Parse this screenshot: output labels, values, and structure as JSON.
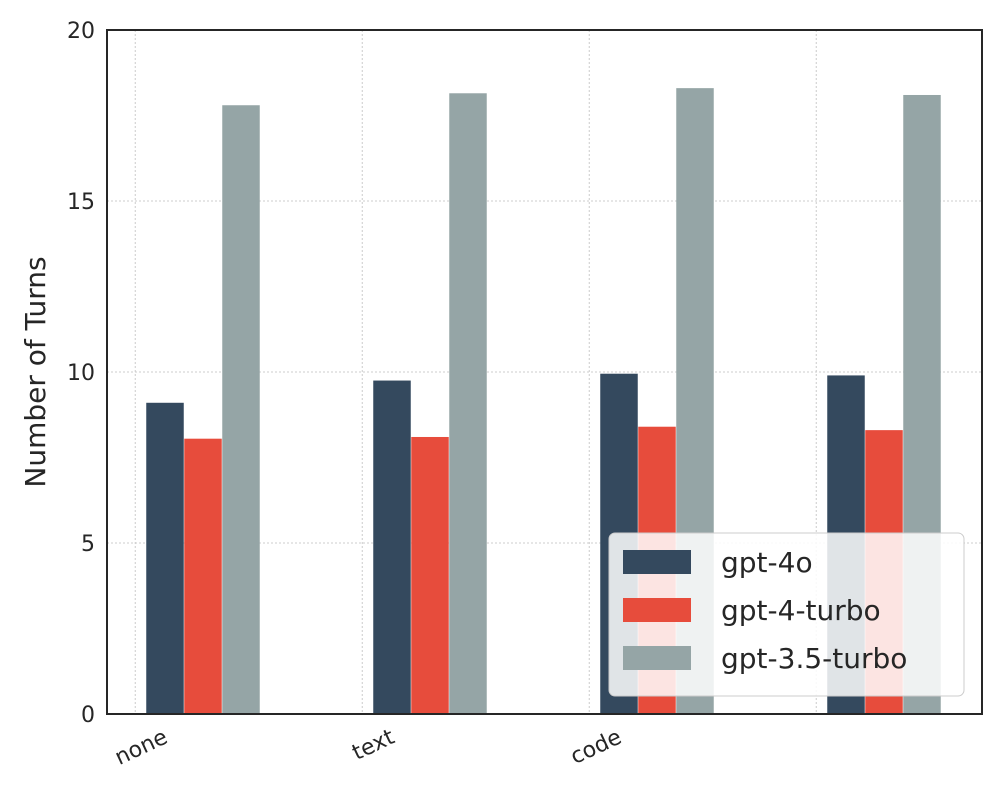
{
  "chart_data": {
    "type": "bar",
    "title": "",
    "xlabel": "",
    "ylabel": "Number of Turns",
    "categories": [
      "none",
      "text",
      "code",
      ""
    ],
    "ylim": [
      0,
      20
    ],
    "yticks": [
      0,
      5,
      10,
      15,
      20
    ],
    "grid": true,
    "legend_position": "bottom-right",
    "series": [
      {
        "name": "gpt-4o",
        "color": "#34495e",
        "values": [
          9.1,
          9.75,
          9.95,
          9.9
        ]
      },
      {
        "name": "gpt-4-turbo",
        "color": "#e74c3c",
        "values": [
          8.05,
          8.1,
          8.4,
          8.3
        ]
      },
      {
        "name": "gpt-3.5-turbo",
        "color": "#95a5a6",
        "values": [
          17.8,
          18.15,
          18.3,
          18.1
        ]
      }
    ]
  }
}
